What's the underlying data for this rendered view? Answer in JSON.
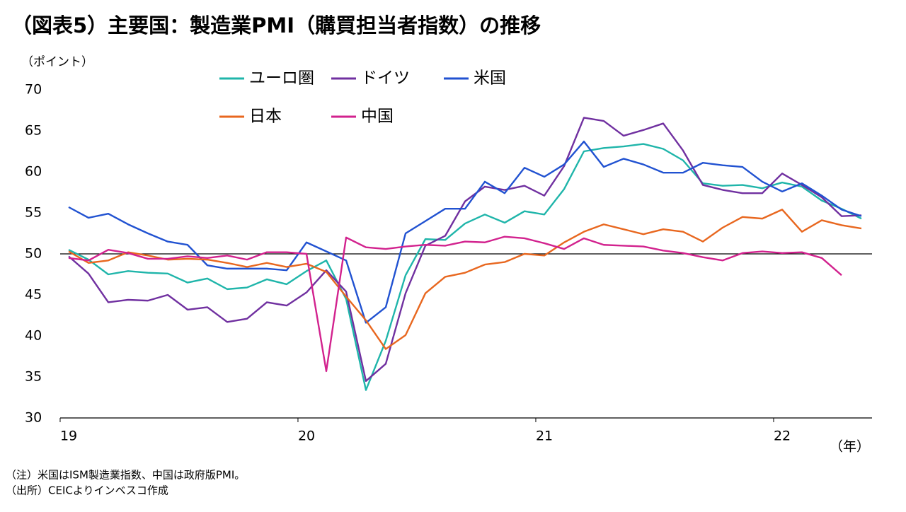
{
  "chart_data": {
    "type": "line",
    "title": "（図表5）主要国：製造業PMI（購買担当者指数）の推移",
    "y_label": "（ポイント）",
    "x_label": "（年）",
    "notes": [
      "（注）米国はISM製造業指数、中国は政府版PMI。",
      "（出所）CEICよりインベスコ作成"
    ],
    "categories": [
      "19",
      null,
      null,
      null,
      null,
      null,
      null,
      null,
      null,
      null,
      null,
      null,
      "20",
      null,
      null,
      null,
      null,
      null,
      null,
      null,
      null,
      null,
      null,
      null,
      "21",
      null,
      null,
      null,
      null,
      null,
      null,
      null,
      null,
      null,
      null,
      null,
      "22",
      null,
      null,
      null,
      null
    ],
    "ylim": [
      30,
      70
    ],
    "yticks": [
      30,
      35,
      40,
      45,
      50,
      55,
      60,
      65,
      70
    ],
    "reference_line": 50,
    "legend": "top",
    "series": [
      {
        "name": "ユーロ圏",
        "color": "#1fb5aa",
        "values": [
          50.5,
          49.3,
          47.5,
          47.9,
          47.7,
          47.6,
          46.5,
          47.0,
          45.7,
          45.9,
          46.9,
          46.3,
          47.9,
          49.2,
          44.5,
          33.4,
          39.4,
          47.4,
          51.8,
          51.7,
          53.7,
          54.8,
          53.8,
          55.2,
          54.8,
          57.9,
          62.5,
          62.9,
          63.1,
          63.4,
          62.8,
          61.4,
          58.6,
          58.3,
          58.4,
          58.0,
          58.7,
          58.2,
          56.5,
          55.5,
          54.3
        ]
      },
      {
        "name": "ドイツ",
        "color": "#7030a0",
        "values": [
          49.7,
          47.6,
          44.1,
          44.4,
          44.3,
          45.0,
          43.2,
          43.5,
          41.7,
          42.1,
          44.1,
          43.7,
          45.3,
          48.0,
          45.4,
          34.5,
          36.6,
          45.2,
          51.0,
          52.2,
          56.4,
          58.2,
          57.8,
          58.3,
          57.1,
          60.7,
          66.6,
          66.2,
          64.4,
          65.1,
          65.9,
          62.6,
          58.4,
          57.8,
          57.4,
          57.4,
          59.8,
          58.4,
          56.9,
          54.6,
          54.7
        ]
      },
      {
        "name": "米国",
        "color": "#2152d1",
        "values": [
          55.7,
          54.4,
          54.9,
          53.6,
          52.5,
          51.5,
          51.1,
          48.6,
          48.2,
          48.2,
          48.2,
          48.0,
          51.4,
          50.3,
          49.2,
          41.6,
          43.5,
          52.5,
          54.0,
          55.5,
          55.5,
          58.8,
          57.4,
          60.5,
          59.4,
          60.9,
          63.7,
          60.6,
          61.6,
          60.9,
          59.9,
          59.9,
          61.1,
          60.8,
          60.6,
          58.8,
          57.6,
          58.6,
          57.1,
          55.4,
          54.6
        ]
      },
      {
        "name": "日本",
        "color": "#e8671f",
        "values": [
          50.3,
          48.9,
          49.2,
          50.2,
          49.8,
          49.3,
          49.4,
          49.3,
          48.9,
          48.4,
          48.9,
          48.4,
          48.8,
          47.8,
          44.8,
          41.9,
          38.4,
          40.1,
          45.2,
          47.2,
          47.7,
          48.7,
          49.0,
          50.0,
          49.8,
          51.4,
          52.7,
          53.6,
          53.0,
          52.4,
          53.0,
          52.7,
          51.5,
          53.2,
          54.5,
          54.3,
          55.4,
          52.7,
          54.1,
          53.5,
          53.1
        ]
      },
      {
        "name": "中国",
        "color": "#d2228e",
        "values": [
          49.5,
          49.2,
          50.5,
          50.1,
          49.4,
          49.4,
          49.7,
          49.5,
          49.8,
          49.3,
          50.2,
          50.2,
          50.0,
          35.7,
          52.0,
          50.8,
          50.6,
          50.9,
          51.1,
          51.0,
          51.5,
          51.4,
          52.1,
          51.9,
          51.3,
          50.6,
          51.9,
          51.1,
          51.0,
          50.9,
          50.4,
          50.1,
          49.6,
          49.2,
          50.1,
          50.3,
          50.1,
          50.2,
          49.5,
          47.4,
          null
        ]
      }
    ]
  }
}
